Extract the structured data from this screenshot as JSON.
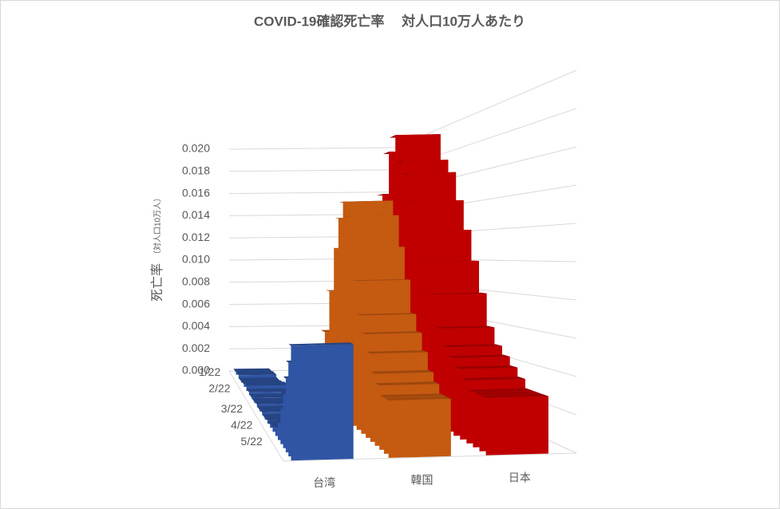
{
  "chart_data": {
    "type": "bar3d",
    "title": "COVID-19確認死亡率　 対人口10万人あたり",
    "y_label": "死亡率",
    "y_label_sub": "（対人口10万人）",
    "categories": [
      "1/22",
      null,
      null,
      null,
      "2/22",
      null,
      null,
      null,
      null,
      "3/22",
      null,
      null,
      null,
      "4/22",
      null,
      null,
      null,
      "5/22",
      null,
      null,
      null,
      null
    ],
    "ylim": [
      0,
      0.02
    ],
    "yticks": [
      {
        "value": 0,
        "label": "0.000"
      },
      {
        "value": 0.002,
        "label": "0.002"
      },
      {
        "value": 0.004,
        "label": "0.004"
      },
      {
        "value": 0.006,
        "label": "0.006"
      },
      {
        "value": 0.008,
        "label": "0.008"
      },
      {
        "value": 0.01,
        "label": "0.010"
      },
      {
        "value": 0.012,
        "label": "0.012"
      },
      {
        "value": 0.014,
        "label": "0.014"
      },
      {
        "value": 0.016,
        "label": "0.016"
      },
      {
        "value": 0.018,
        "label": "0.018"
      },
      {
        "value": 0.02,
        "label": "0.020"
      }
    ],
    "grid": true,
    "series": [
      {
        "name": "台湾",
        "color": "#2f55a4",
        "values": [
          0.0002,
          0.0003,
          0.0001,
          0.0002,
          0.0004,
          0.0002,
          0.0001,
          0.0001,
          0.0002,
          0.0001,
          0.0002,
          0.0001,
          0.0002,
          0.0002,
          0.0003,
          0.0005,
          0.001,
          0.002,
          0.003,
          0.004,
          0.005,
          0.006
        ]
      },
      {
        "name": "韓国",
        "color": "#c55a11",
        "values": [
          0.0005,
          0.0006,
          0.0008,
          0.001,
          0.0015,
          0.002,
          0.003,
          0.005,
          0.008,
          0.011,
          0.013,
          0.014,
          0.013,
          0.011,
          0.009,
          0.007,
          0.006,
          0.005,
          0.004,
          0.0035,
          0.003,
          0.003
        ]
      },
      {
        "name": "日本",
        "color": "#c00000",
        "values": [
          0.001,
          0.0015,
          0.003,
          0.006,
          0.01,
          0.015,
          0.018,
          0.019,
          0.017,
          0.016,
          0.014,
          0.012,
          0.01,
          0.008,
          0.006,
          0.005,
          0.0045,
          0.004,
          0.0035,
          0.003,
          0.003,
          0.003
        ]
      }
    ]
  }
}
